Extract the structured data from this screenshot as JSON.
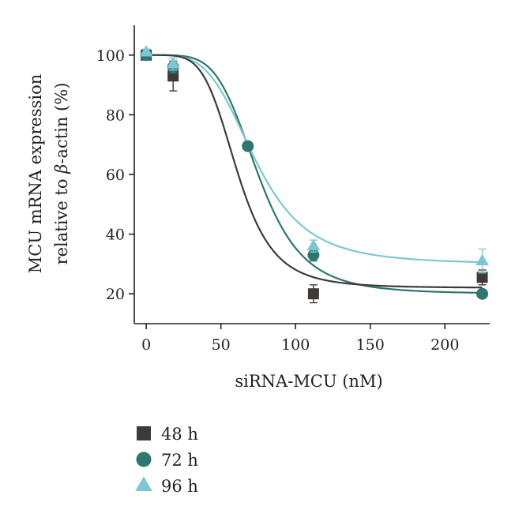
{
  "chart_data": {
    "type": "scatter",
    "xlabel": "siRNA-MCU (nM)",
    "ylabel_line1": "MCU mRNA expression",
    "ylabel_line2_prefix": "relative to ",
    "ylabel_line2_symbol": "β",
    "ylabel_line2_suffix": "-actin (%)",
    "xlim": [
      -8,
      230
    ],
    "ylim": [
      10,
      110
    ],
    "x_ticks": [
      0,
      50,
      100,
      150,
      200
    ],
    "y_ticks": [
      20,
      40,
      60,
      80,
      100
    ],
    "grid": false,
    "legend_position": "bottom-left",
    "series": [
      {
        "name": "48 h",
        "color": "#3d3a38",
        "marker": "square",
        "points": [
          {
            "x": 0,
            "y": 100,
            "err": 1
          },
          {
            "x": 18,
            "y": 93,
            "err": 5
          },
          {
            "x": 112,
            "y": 20,
            "err": 3
          },
          {
            "x": 225,
            "y": 25.5,
            "err": 2.5
          }
        ],
        "fit": {
          "top": 100,
          "bottom": 22,
          "ec50": 61,
          "hill": 5
        }
      },
      {
        "name": "72 h",
        "color": "#2e7670",
        "marker": "circle",
        "points": [
          {
            "x": 0,
            "y": 100,
            "err": 1
          },
          {
            "x": 18,
            "y": 96,
            "err": 2
          },
          {
            "x": 68,
            "y": 69.5,
            "err": 1
          },
          {
            "x": 112,
            "y": 33,
            "err": 2
          },
          {
            "x": 225,
            "y": 20,
            "err": 1
          }
        ],
        "fit": {
          "top": 100,
          "bottom": 20,
          "ec50": 75,
          "hill": 5
        }
      },
      {
        "name": "96 h",
        "color": "#7ec6d3",
        "marker": "triangle",
        "points": [
          {
            "x": 0,
            "y": 101,
            "err": 1
          },
          {
            "x": 18,
            "y": 97,
            "err": 2
          },
          {
            "x": 112,
            "y": 36,
            "err": 2
          },
          {
            "x": 225,
            "y": 31,
            "err": 4
          }
        ],
        "fit": {
          "top": 100,
          "bottom": 30,
          "ec50": 73,
          "hill": 4.2
        }
      }
    ]
  }
}
